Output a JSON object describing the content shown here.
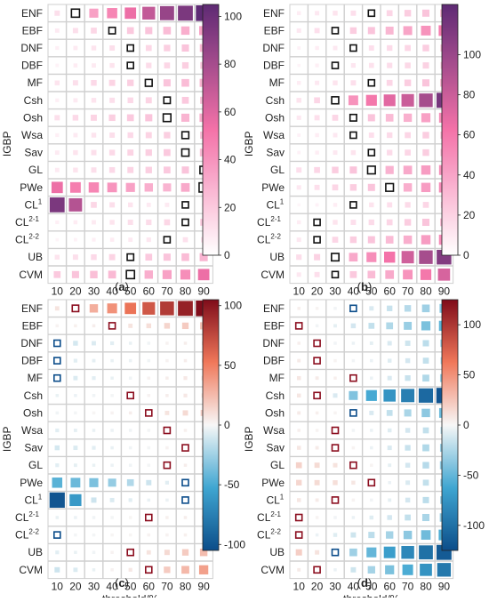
{
  "colors": {
    "pink_low": "#ffffff",
    "pink_mid": "#f472a8",
    "pink_high": "#5e2a74",
    "div_neg": "#0c4d8a",
    "div_mid_neg": "#3fa6d1",
    "div_zero": "#f7f7f7",
    "div_mid_pos": "#f0785a",
    "div_pos": "#7f0c1a",
    "grid": "#cfcfcf"
  },
  "shared": {
    "rows": [
      "ENF",
      "EBF",
      "DNF",
      "DBF",
      "MF",
      "Csh",
      "Osh",
      "Wsa",
      "Sav",
      "GL",
      "PWe",
      "CL",
      "CL",
      "CL",
      "UB",
      "CVM"
    ],
    "row_sups": [
      "",
      "",
      "",
      "",
      "",
      "",
      "",
      "",
      "",
      "",
      "",
      "1",
      "2-1",
      "2-2",
      "",
      ""
    ],
    "thresholds": [
      "10",
      "20",
      "30",
      "40",
      "50",
      "60",
      "70",
      "80",
      "90"
    ],
    "xlabel": "threshold/%",
    "ylabel": "IGBP"
  },
  "chart_data": [
    {
      "type": "heatmap",
      "panel_label": "(a)",
      "scale": "sequential",
      "zlim": [
        0,
        105
      ],
      "colorbar_ticks": [
        "0",
        "20",
        "40",
        "60",
        "80",
        "100"
      ],
      "colorbar_tick_values": [
        0,
        20,
        40,
        60,
        80,
        100
      ],
      "xlabel": "threshold/%",
      "ylabel": "IGBP",
      "values": [
        [
          12,
          28,
          35,
          45,
          55,
          70,
          85,
          95,
          105
        ],
        [
          8,
          12,
          15,
          18,
          20,
          22,
          25,
          30,
          35
        ],
        [
          6,
          8,
          10,
          12,
          14,
          15,
          18,
          22,
          26
        ],
        [
          5,
          7,
          8,
          10,
          12,
          13,
          15,
          18,
          20
        ],
        [
          10,
          12,
          14,
          16,
          18,
          20,
          22,
          25,
          28
        ],
        [
          6,
          8,
          10,
          12,
          14,
          16,
          18,
          20,
          22
        ],
        [
          12,
          14,
          16,
          18,
          20,
          22,
          25,
          28,
          30
        ],
        [
          6,
          8,
          10,
          12,
          14,
          16,
          18,
          20,
          22
        ],
        [
          8,
          10,
          12,
          14,
          16,
          18,
          20,
          22,
          25
        ],
        [
          8,
          10,
          12,
          14,
          16,
          18,
          20,
          22,
          24
        ],
        [
          55,
          48,
          45,
          40,
          35,
          30,
          28,
          32,
          36
        ],
        [
          95,
          75,
          15,
          12,
          10,
          8,
          8,
          6,
          5
        ],
        [
          6,
          7,
          8,
          10,
          12,
          13,
          15,
          17,
          20
        ],
        [
          4,
          5,
          6,
          7,
          8,
          9,
          10,
          11,
          12
        ],
        [
          10,
          12,
          14,
          16,
          18,
          20,
          22,
          25,
          28
        ],
        [
          20,
          22,
          24,
          26,
          28,
          30,
          35,
          42,
          55
        ]
      ],
      "highlight_cols": [
        1,
        3,
        4,
        4,
        5,
        6,
        6,
        7,
        7,
        8,
        8,
        7,
        7,
        6,
        4,
        4
      ]
    },
    {
      "type": "heatmap",
      "panel_label": "(b)",
      "scale": "sequential",
      "zlim": [
        0,
        125
      ],
      "colorbar_ticks": [
        "0",
        "20",
        "40",
        "60",
        "80",
        "100"
      ],
      "colorbar_tick_values": [
        0,
        20,
        40,
        60,
        80,
        100
      ],
      "xlabel": "threshold/%",
      "ylabel": "IGBP",
      "values": [
        [
          8,
          10,
          12,
          14,
          16,
          18,
          22,
          26,
          30
        ],
        [
          10,
          14,
          18,
          22,
          26,
          32,
          40,
          48,
          58
        ],
        [
          6,
          8,
          10,
          12,
          14,
          16,
          18,
          22,
          26
        ],
        [
          5,
          7,
          9,
          11,
          13,
          15,
          17,
          20,
          24
        ],
        [
          8,
          10,
          12,
          14,
          16,
          18,
          22,
          26,
          30
        ],
        [
          12,
          18,
          25,
          48,
          60,
          70,
          80,
          95,
          115
        ],
        [
          10,
          14,
          18,
          22,
          26,
          30,
          35,
          42,
          50
        ],
        [
          6,
          8,
          10,
          12,
          14,
          16,
          18,
          22,
          26
        ],
        [
          6,
          8,
          10,
          12,
          14,
          16,
          18,
          22,
          26
        ],
        [
          14,
          18,
          22,
          26,
          30,
          34,
          38,
          44,
          50
        ],
        [
          10,
          14,
          18,
          22,
          26,
          30,
          36,
          44,
          52
        ],
        [
          4,
          6,
          8,
          10,
          12,
          14,
          16,
          18,
          20
        ],
        [
          8,
          10,
          12,
          14,
          16,
          18,
          22,
          26,
          30
        ],
        [
          10,
          14,
          18,
          22,
          26,
          30,
          36,
          44,
          52
        ],
        [
          15,
          20,
          28,
          38,
          50,
          62,
          78,
          95,
          110
        ],
        [
          10,
          14,
          18,
          24,
          30,
          38,
          48,
          60,
          75
        ]
      ],
      "highlight_cols": [
        4,
        2,
        3,
        2,
        4,
        2,
        3,
        3,
        4,
        4,
        5,
        3,
        1,
        1,
        2,
        2
      ]
    },
    {
      "type": "heatmap",
      "panel_label": "(c)",
      "scale": "diverging",
      "zlim": [
        -105,
        105
      ],
      "colorbar_ticks": [
        "100",
        "50",
        "0",
        "-50",
        "-100"
      ],
      "colorbar_tick_values": [
        100,
        50,
        0,
        -50,
        -100
      ],
      "xlabel": "threshold/%",
      "ylabel": "IGBP",
      "values": [
        [
          8,
          18,
          30,
          42,
          55,
          68,
          82,
          95,
          105
        ],
        [
          2,
          3,
          4,
          6,
          8,
          10,
          14,
          18,
          22
        ],
        [
          -12,
          -10,
          -8,
          -6,
          -4,
          -2,
          2,
          4,
          6
        ],
        [
          -8,
          -6,
          -5,
          -4,
          -3,
          -2,
          2,
          4,
          6
        ],
        [
          -10,
          -8,
          -6,
          -4,
          -2,
          2,
          4,
          6,
          8
        ],
        [
          -4,
          -3,
          -2,
          -1,
          1,
          2,
          4,
          6,
          8
        ],
        [
          -2,
          -1,
          1,
          2,
          4,
          6,
          8,
          12,
          16
        ],
        [
          -6,
          -5,
          -4,
          -3,
          -2,
          -1,
          1,
          3,
          6
        ],
        [
          -10,
          -8,
          -6,
          -4,
          -2,
          -1,
          2,
          4,
          6
        ],
        [
          -6,
          -5,
          -4,
          -3,
          -2,
          -1,
          2,
          4,
          6
        ],
        [
          -45,
          -40,
          -35,
          -28,
          -20,
          -12,
          -6,
          -2,
          2
        ],
        [
          -100,
          -60,
          -12,
          -8,
          -6,
          -4,
          -3,
          -2,
          -1
        ],
        [
          -4,
          -3,
          -2,
          -1,
          1,
          2,
          3,
          4,
          6
        ],
        [
          -2,
          -1,
          -1,
          1,
          1,
          2,
          2,
          3,
          4
        ],
        [
          -6,
          -4,
          -2,
          2,
          4,
          8,
          12,
          18,
          24
        ],
        [
          -12,
          -8,
          -4,
          2,
          6,
          12,
          18,
          26,
          36
        ]
      ],
      "highlight_cols": [
        1,
        3,
        0,
        0,
        0,
        4,
        5,
        6,
        7,
        6,
        7,
        7,
        5,
        0,
        4,
        5
      ]
    },
    {
      "type": "heatmap",
      "panel_label": "(d)",
      "scale": "diverging",
      "zlim": [
        -125,
        125
      ],
      "colorbar_ticks": [
        "100",
        "50",
        "0",
        "-50",
        "-100"
      ],
      "colorbar_tick_values": [
        100,
        50,
        0,
        -50,
        -100
      ],
      "xlabel": "threshold/%",
      "ylabel": "IGBP",
      "values": [
        [
          4,
          2,
          -2,
          -6,
          -10,
          -16,
          -22,
          -30,
          -40
        ],
        [
          6,
          -2,
          -6,
          -12,
          -18,
          -24,
          -32,
          -42,
          -52
        ],
        [
          4,
          2,
          -2,
          -4,
          -6,
          -10,
          -14,
          -20,
          -28
        ],
        [
          6,
          4,
          2,
          -2,
          -4,
          -8,
          -12,
          -18,
          -24
        ],
        [
          8,
          6,
          4,
          2,
          -4,
          -10,
          -16,
          -24,
          -32
        ],
        [
          8,
          4,
          -10,
          -40,
          -60,
          -75,
          -90,
          -105,
          -120
        ],
        [
          6,
          4,
          2,
          -4,
          -10,
          -18,
          -26,
          -36,
          -48
        ],
        [
          4,
          2,
          2,
          -2,
          -4,
          -8,
          -12,
          -18,
          -24
        ],
        [
          8,
          6,
          4,
          2,
          -4,
          -10,
          -16,
          -24,
          -32
        ],
        [
          18,
          14,
          10,
          6,
          2,
          -6,
          -12,
          -22,
          -34
        ],
        [
          16,
          14,
          12,
          8,
          4,
          -4,
          -10,
          -18,
          -28
        ],
        [
          8,
          6,
          4,
          2,
          -2,
          -6,
          -12,
          -20,
          -30
        ],
        [
          4,
          2,
          -2,
          -4,
          -8,
          -12,
          -18,
          -26,
          -36
        ],
        [
          6,
          -4,
          -8,
          -14,
          -20,
          -28,
          -36,
          -46,
          -58
        ],
        [
          20,
          10,
          -8,
          -30,
          -50,
          -68,
          -84,
          -100,
          -115
        ],
        [
          6,
          4,
          -4,
          -14,
          -28,
          -42,
          -58,
          -76,
          -95
        ]
      ],
      "highlight_cols": [
        3,
        0,
        1,
        1,
        3,
        1,
        3,
        2,
        2,
        3,
        4,
        2,
        0,
        0,
        2,
        1
      ]
    }
  ]
}
